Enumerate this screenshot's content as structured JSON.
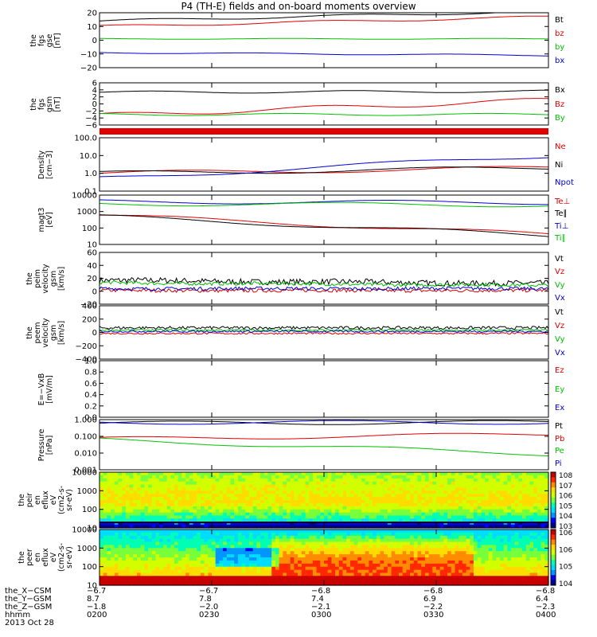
{
  "title": "P4 (TH-E) fields and on-board moments overview",
  "colors": {
    "black": "#000000",
    "red": "#e00000",
    "green": "#00c000",
    "blue": "#0000d0"
  },
  "chart_data": [
    {
      "type": "line",
      "ylabel": "the\nfgs\ngse\n[nT]",
      "ylim": [
        -20,
        20
      ],
      "ticks": [
        "20",
        "10",
        "0",
        "−10",
        "−20"
      ],
      "series": [
        {
          "name": "Bt",
          "color": "black",
          "start": 14,
          "end": 21
        },
        {
          "name": "bz",
          "color": "red",
          "start": 10,
          "end": 17
        },
        {
          "name": "by",
          "color": "green",
          "start": 1,
          "end": 1
        },
        {
          "name": "bx",
          "color": "blue",
          "start": -9,
          "end": -11
        }
      ]
    },
    {
      "type": "line",
      "ylabel": "the\nfgs\ngsm\n[nT]",
      "ylim": [
        -6,
        6
      ],
      "ticks": [
        "6",
        "4",
        "2",
        "0",
        "−2",
        "−4",
        "−6"
      ],
      "series": [
        {
          "name": "Bx",
          "color": "black",
          "start": 3.3,
          "end": 3.6
        },
        {
          "name": "Bz",
          "color": "red",
          "start": -3.3,
          "end": 1.1
        },
        {
          "name": "By",
          "color": "green",
          "start": -3,
          "end": -3
        }
      ]
    },
    {
      "type": "line",
      "ylabel": "Density\n[cm−3]",
      "log": true,
      "ylim": [
        0.1,
        100
      ],
      "ticks": [
        "100.0",
        "10.0",
        "1.0",
        "0.1"
      ],
      "series": [
        {
          "name": "Ne",
          "color": "red",
          "start": 1.0,
          "end": 2.0
        },
        {
          "name": "Ni",
          "color": "black",
          "start": 1.0,
          "end": 2.0
        },
        {
          "name": "Npot",
          "color": "blue",
          "start": 0.5,
          "end": 10
        }
      ]
    },
    {
      "type": "line",
      "ylabel": "magt3\n[eV]",
      "log": true,
      "ylim": [
        10,
        10000
      ],
      "ticks": [
        "10000",
        "1000",
        "100",
        "10"
      ],
      "series": [
        {
          "name": "Te⊥",
          "color": "red",
          "start": 600,
          "end": 40
        },
        {
          "name": "Te∥",
          "color": "black",
          "start": 500,
          "end": 35
        },
        {
          "name": "Ti⊥",
          "color": "blue",
          "start": 4000,
          "end": 3500
        },
        {
          "name": "Ti∥",
          "color": "green",
          "start": 3000,
          "end": 2500
        }
      ]
    },
    {
      "type": "line",
      "ylabel": "the\npeim\nvelocity\ngsm\n[km/s]",
      "ylim": [
        -20,
        60
      ],
      "ticks": [
        "60",
        "40",
        "20",
        "0",
        "−20"
      ],
      "series": [
        {
          "name": "Vt",
          "color": "black",
          "start": 15,
          "end": 10
        },
        {
          "name": "Vz",
          "color": "red",
          "start": 0,
          "end": 0
        },
        {
          "name": "Vy",
          "color": "green",
          "start": 12,
          "end": 8
        },
        {
          "name": "Vx",
          "color": "blue",
          "start": 3,
          "end": 3
        }
      ]
    },
    {
      "type": "line",
      "ylabel": "the\npeem\nvelocity\ngsm\n[km/s]",
      "ylim": [
        -400,
        400
      ],
      "ticks": [
        "400",
        "200",
        "0",
        "−200",
        "−400"
      ],
      "series": [
        {
          "name": "Vt",
          "color": "black",
          "start": 60,
          "end": 60
        },
        {
          "name": "Vz",
          "color": "red",
          "start": -20,
          "end": -20
        },
        {
          "name": "Vy",
          "color": "green",
          "start": 30,
          "end": 30
        },
        {
          "name": "Vx",
          "color": "blue",
          "start": 10,
          "end": 10
        }
      ]
    },
    {
      "type": "line",
      "ylabel": "E=−VxB\n[mV/m]",
      "ylim": [
        0,
        1
      ],
      "ticks": [
        "1.0",
        "0.8",
        "0.6",
        "0.4",
        "0.2",
        "0.0"
      ],
      "series": [
        {
          "name": "Ez",
          "color": "red"
        },
        {
          "name": "Ey",
          "color": "green"
        },
        {
          "name": "Ex",
          "color": "blue"
        }
      ]
    },
    {
      "type": "line",
      "ylabel": "Pressure\n[nPa]",
      "log": true,
      "ylim": [
        0.001,
        1.5
      ],
      "ticks": [
        "1.000",
        "0.100",
        "0.010",
        "0.001"
      ],
      "series": [
        {
          "name": "Pt",
          "color": "black",
          "start": 0.9,
          "end": 1.0
        },
        {
          "name": "Pb",
          "color": "red",
          "start": 0.09,
          "end": 0.18
        },
        {
          "name": "Pe",
          "color": "green",
          "start": 0.08,
          "end": 0.01
        },
        {
          "name": "Pi",
          "color": "blue",
          "start": 1.0,
          "end": 1.0
        }
      ]
    },
    {
      "type": "heatmap",
      "ylabel": "the\npeir\nen\neflux\neV\n(cm2-s-\nsr-eV)",
      "log": true,
      "ylim": [
        5,
        20000
      ],
      "ticks": [
        "10000",
        "1000",
        "100",
        "10"
      ],
      "colorbar": [
        "108",
        "107",
        "106",
        "105",
        "104",
        "103"
      ]
    },
    {
      "type": "heatmap",
      "ylabel": "the\npeer\nen\neflux\neV\n(cm2-s-\nsr-eV)",
      "log": true,
      "ylim": [
        5,
        20000
      ],
      "ticks": [
        "10000",
        "1000",
        "100",
        "10"
      ],
      "colorbar": [
        "106",
        "106",
        "105",
        "104"
      ]
    }
  ],
  "ephemeris": {
    "labels": [
      "the_X−CSM",
      "the_Y−GSM",
      "the_Z−GSM",
      "hhmm",
      "2013 Oct 28"
    ],
    "columns": [
      [
        "−6.7",
        "8.7",
        "−1.8",
        "0200"
      ],
      [
        "−6.7",
        "7.8",
        "−2.0",
        "0230"
      ],
      [
        "−6.8",
        "7.4",
        "−2.1",
        "0300"
      ],
      [
        "−6.8",
        "6.9",
        "−2.2",
        "0330"
      ],
      [
        "−6.8",
        "6.4",
        "−2.3",
        "0400"
      ]
    ]
  }
}
